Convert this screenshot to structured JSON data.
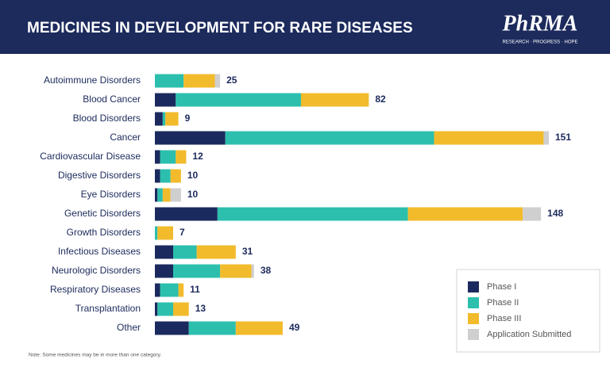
{
  "header": {
    "title": "MEDICINES IN DEVELOPMENT FOR RARE DISEASES",
    "logo": "PhRMA",
    "tagline": "RESEARCH · PROGRESS · HOPE"
  },
  "chart_data": {
    "type": "stacked-bar-horizontal",
    "categories": [
      "Autoimmune Disorders",
      "Blood Cancer",
      "Blood Disorders",
      "Cancer",
      "Cardiovascular Disease",
      "Digestive Disorders",
      "Eye Disorders",
      "Genetic Disorders",
      "Growth Disorders",
      "Infectious Diseases",
      "Neurologic Disorders",
      "Respiratory Diseases",
      "Transplantation",
      "Other"
    ],
    "series": [
      {
        "name": "Phase I",
        "color": "#1b2a5e",
        "values": [
          0,
          8,
          3,
          27,
          2,
          2,
          1,
          24,
          0,
          7,
          7,
          2,
          1,
          13
        ]
      },
      {
        "name": "Phase II",
        "color": "#2cbfae",
        "values": [
          11,
          48,
          1,
          80,
          6,
          4,
          2,
          73,
          1,
          9,
          18,
          7,
          6,
          18
        ]
      },
      {
        "name": "Phase III",
        "color": "#f2bb2c",
        "values": [
          12,
          26,
          5,
          42,
          4,
          4,
          3,
          44,
          6,
          15,
          12,
          2,
          6,
          18
        ]
      },
      {
        "name": "Application Submitted",
        "color": "#cfcfcf",
        "values": [
          2,
          0,
          0,
          2,
          0,
          0,
          4,
          7,
          0,
          0,
          1,
          0,
          0,
          0
        ]
      }
    ],
    "total_labels": [
      25,
      82,
      9,
      151,
      12,
      10,
      10,
      148,
      7,
      31,
      38,
      11,
      13,
      49
    ],
    "note": "Note: Some medicines may be in more than one category."
  }
}
